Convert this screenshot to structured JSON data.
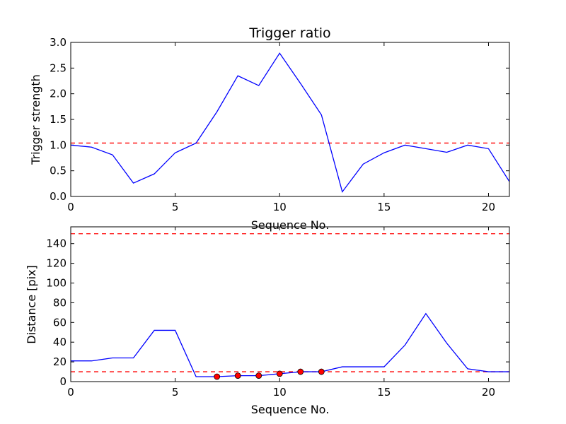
{
  "chart_data": [
    {
      "type": "line",
      "title": "Trigger ratio",
      "xlabel": "Sequence No.",
      "ylabel": "Trigger strength",
      "xlim": [
        0,
        21
      ],
      "ylim": [
        0,
        3.0
      ],
      "xticks": [
        0,
        5,
        10,
        15,
        20
      ],
      "yticks": [
        0.0,
        0.5,
        1.0,
        1.5,
        2.0,
        2.5,
        3.0
      ],
      "ytick_labels": [
        "0.0",
        "0.5",
        "1.0",
        "1.5",
        "2.0",
        "2.5",
        "3.0"
      ],
      "grid": false,
      "series": [
        {
          "color": "#0000ff",
          "x": [
            0,
            1,
            2,
            3,
            4,
            5,
            6,
            7,
            8,
            9,
            10,
            11,
            12,
            13,
            14,
            15,
            16,
            17,
            18,
            19,
            20,
            21
          ],
          "y": [
            1.0,
            0.96,
            0.81,
            0.26,
            0.44,
            0.85,
            1.04,
            1.65,
            2.35,
            2.16,
            2.79,
            2.2,
            1.59,
            0.09,
            0.63,
            0.85,
            1.0,
            0.93,
            0.86,
            1.0,
            0.93,
            0.29
          ]
        }
      ],
      "hlines": [
        {
          "y": 1.04,
          "color": "#ff0000",
          "style": "dashed"
        }
      ]
    },
    {
      "type": "line",
      "title": "",
      "xlabel": "Sequence No.",
      "ylabel": "Distance [pix]",
      "xlim": [
        0,
        21
      ],
      "ylim": [
        0,
        157
      ],
      "xticks": [
        0,
        5,
        10,
        15,
        20
      ],
      "yticks": [
        0,
        20,
        40,
        60,
        80,
        100,
        120,
        140
      ],
      "grid": false,
      "series": [
        {
          "color": "#0000ff",
          "x": [
            0,
            1,
            2,
            3,
            4,
            5,
            6,
            7,
            8,
            9,
            10,
            11,
            12,
            13,
            14,
            15,
            16,
            17,
            18,
            19,
            20,
            21
          ],
          "y": [
            21,
            21,
            24,
            24,
            52,
            52,
            5,
            5,
            6,
            6,
            8,
            10,
            10,
            15,
            15,
            15,
            37,
            69,
            39,
            13,
            10,
            10
          ]
        }
      ],
      "markers": {
        "color": "#ff0000",
        "x": [
          7,
          8,
          9,
          10,
          11,
          12
        ],
        "y": [
          5,
          6,
          6,
          8,
          10,
          10
        ]
      },
      "hlines": [
        {
          "y": 150,
          "color": "#ff0000",
          "style": "dashed"
        },
        {
          "y": 10,
          "color": "#ff0000",
          "style": "dashed"
        }
      ]
    }
  ]
}
